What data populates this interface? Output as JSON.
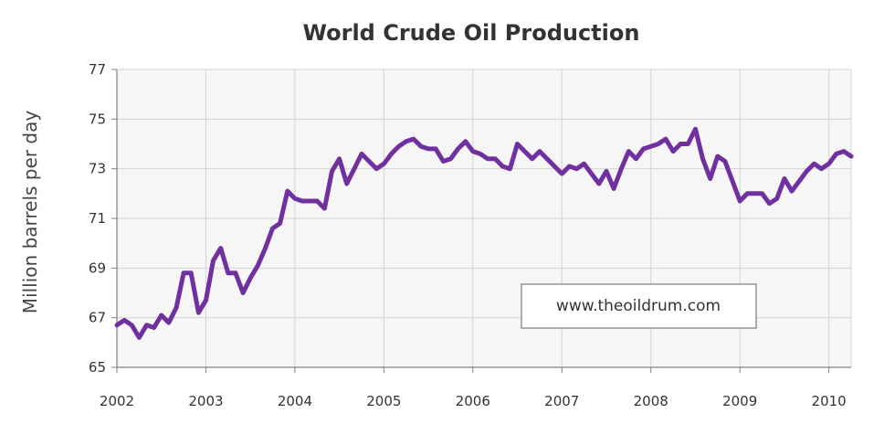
{
  "chart_data": {
    "type": "line",
    "title": "World Crude Oil Production",
    "xlabel": "",
    "ylabel": "Million barrels per day",
    "watermark": "www.theoildrum.com",
    "xlim": [
      2002,
      2010.25
    ],
    "ylim": [
      65,
      77
    ],
    "x_ticks": [
      "2002",
      "2003",
      "2004",
      "2005",
      "2006",
      "2007",
      "2008",
      "2009",
      "2010"
    ],
    "y_ticks": [
      "65",
      "67",
      "69",
      "71",
      "73",
      "75",
      "77"
    ],
    "grid": true,
    "legend": "none",
    "colors": {
      "line": "#7030A0",
      "plot_background": "#f6f6f6",
      "grid": "#d4d4d4",
      "axis": "#7f7f7f"
    },
    "series": [
      {
        "x": [
          2002.0,
          2002.083,
          2002.167,
          2002.25,
          2002.333,
          2002.417,
          2002.5,
          2002.583,
          2002.667,
          2002.75,
          2002.833,
          2002.917,
          2003.0,
          2003.083,
          2003.167,
          2003.25,
          2003.333,
          2003.417,
          2003.5,
          2003.583,
          2003.667,
          2003.75,
          2003.833,
          2003.917,
          2004.0,
          2004.083,
          2004.167,
          2004.25,
          2004.333,
          2004.417,
          2004.5,
          2004.583,
          2004.667,
          2004.75,
          2004.833,
          2004.917,
          2005.0,
          2005.083,
          2005.167,
          2005.25,
          2005.333,
          2005.417,
          2005.5,
          2005.583,
          2005.667,
          2005.75,
          2005.833,
          2005.917,
          2006.0,
          2006.083,
          2006.167,
          2006.25,
          2006.333,
          2006.417,
          2006.5,
          2006.583,
          2006.667,
          2006.75,
          2006.833,
          2006.917,
          2007.0,
          2007.083,
          2007.167,
          2007.25,
          2007.333,
          2007.417,
          2007.5,
          2007.583,
          2007.667,
          2007.75,
          2007.833,
          2007.917,
          2008.0,
          2008.083,
          2008.167,
          2008.25,
          2008.333,
          2008.417,
          2008.5,
          2008.583,
          2008.667,
          2008.75,
          2008.833,
          2008.917,
          2009.0,
          2009.083,
          2009.167,
          2009.25,
          2009.333,
          2009.417,
          2009.5,
          2009.583,
          2009.667,
          2009.75,
          2009.833,
          2009.917,
          2010.0,
          2010.083,
          2010.167,
          2010.25
        ],
        "y": [
          66.7,
          66.9,
          66.7,
          66.2,
          66.7,
          66.6,
          67.1,
          66.8,
          67.4,
          68.8,
          68.8,
          67.2,
          67.7,
          69.3,
          69.8,
          68.8,
          68.8,
          68.0,
          68.6,
          69.1,
          69.8,
          70.6,
          70.8,
          72.1,
          71.8,
          71.7,
          71.7,
          71.7,
          71.4,
          72.9,
          73.4,
          72.4,
          73.0,
          73.6,
          73.3,
          73.0,
          73.2,
          73.6,
          73.9,
          74.1,
          74.2,
          73.9,
          73.8,
          73.8,
          73.3,
          73.4,
          73.8,
          74.1,
          73.7,
          73.6,
          73.4,
          73.4,
          73.1,
          73.0,
          74.0,
          73.7,
          73.4,
          73.7,
          73.4,
          73.1,
          72.8,
          73.1,
          73.0,
          73.2,
          72.8,
          72.4,
          72.9,
          72.2,
          73.0,
          73.7,
          73.4,
          73.8,
          73.9,
          74.0,
          74.2,
          73.7,
          74.0,
          74.0,
          74.6,
          73.4,
          72.6,
          73.5,
          73.3,
          72.5,
          71.7,
          72.0,
          72.0,
          72.0,
          71.6,
          71.8,
          72.6,
          72.1,
          72.5,
          72.9,
          73.2,
          73.0,
          73.2,
          73.6,
          73.7,
          73.5
        ]
      }
    ]
  }
}
